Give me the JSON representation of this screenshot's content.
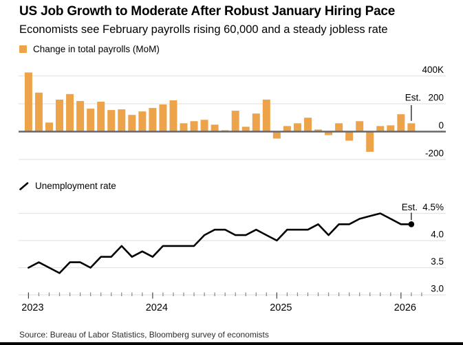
{
  "header": {
    "title": "US Job Growth to Moderate After Robust January Hiring Pace",
    "subtitle": "Economists see February payrolls rising 60,000 and a steady jobless rate"
  },
  "colors": {
    "bar": "#ECA34A",
    "line": "#000000",
    "grid": "#E4E4E4",
    "zero_axis": "#666666",
    "tick_minor": "#888888",
    "tick_major": "#444444",
    "background": "#FFFFFF",
    "footer_bar": "#000000"
  },
  "chart_data": [
    {
      "id": "payrolls",
      "type": "bar",
      "legend": "Change in total payrolls (MoM)",
      "unit": "thousands",
      "categories": [
        "Jan 2023",
        "Feb 2023",
        "Mar 2023",
        "Apr 2023",
        "May 2023",
        "Jun 2023",
        "Jul 2023",
        "Aug 2023",
        "Sep 2023",
        "Oct 2023",
        "Nov 2023",
        "Dec 2023",
        "Jan 2024",
        "Feb 2024",
        "Mar 2024",
        "Apr 2024",
        "May 2024",
        "Jun 2024",
        "Jul 2024",
        "Aug 2024",
        "Sep 2024",
        "Oct 2024",
        "Nov 2024",
        "Dec 2024",
        "Jan 2025",
        "Feb 2025",
        "Mar 2025",
        "Apr 2025",
        "May 2025",
        "Jun 2025",
        "Jul 2025",
        "Aug 2025",
        "Sep 2025",
        "Oct 2025",
        "Nov 2025",
        "Dec 2025",
        "Jan 2026",
        "Feb 2026"
      ],
      "values": [
        425,
        280,
        65,
        230,
        270,
        220,
        165,
        215,
        155,
        160,
        120,
        145,
        170,
        195,
        225,
        60,
        75,
        85,
        50,
        10,
        150,
        35,
        130,
        230,
        -50,
        40,
        60,
        100,
        15,
        -25,
        60,
        -65,
        75,
        -145,
        40,
        45,
        125,
        60
      ],
      "est_label": "Est.",
      "est_applies_to": "Feb 2026",
      "est_value": 60,
      "yticks": [
        {
          "value": 400,
          "label": "400K"
        },
        {
          "value": 200,
          "label": "200"
        },
        {
          "value": 0,
          "label": "0"
        },
        {
          "value": -200,
          "label": "-200"
        }
      ],
      "ylim": [
        -260,
        460
      ],
      "grid": true,
      "legend_position": "top-left"
    },
    {
      "id": "unemployment",
      "type": "line",
      "legend": "Unemployment rate",
      "unit": "percent",
      "categories": [
        "Jan 2023",
        "Feb 2023",
        "Mar 2023",
        "Apr 2023",
        "May 2023",
        "Jun 2023",
        "Jul 2023",
        "Aug 2023",
        "Sep 2023",
        "Oct 2023",
        "Nov 2023",
        "Dec 2023",
        "Jan 2024",
        "Feb 2024",
        "Mar 2024",
        "Apr 2024",
        "May 2024",
        "Jun 2024",
        "Jul 2024",
        "Aug 2024",
        "Sep 2024",
        "Oct 2024",
        "Nov 2024",
        "Dec 2024",
        "Jan 2025",
        "Feb 2025",
        "Mar 2025",
        "Apr 2025",
        "May 2025",
        "Jun 2025",
        "Jul 2025",
        "Aug 2025",
        "Sep 2025",
        "Oct 2025",
        "Nov 2025",
        "Dec 2025",
        "Jan 2026",
        "Feb 2026"
      ],
      "values": [
        3.5,
        3.6,
        3.5,
        3.4,
        3.6,
        3.6,
        3.5,
        3.7,
        3.7,
        3.9,
        3.7,
        3.8,
        3.7,
        3.9,
        3.9,
        3.9,
        3.9,
        4.1,
        4.2,
        4.2,
        4.1,
        4.1,
        4.2,
        4.1,
        4.0,
        4.2,
        4.2,
        4.2,
        4.3,
        4.1,
        4.3,
        4.3,
        4.4,
        4.45,
        4.5,
        4.4,
        4.3,
        4.3
      ],
      "est_label": "Est.",
      "est_applies_to": "Feb 2026",
      "est_value": 4.3,
      "yticks": [
        {
          "value": 4.5,
          "label": "4.5%"
        },
        {
          "value": 4.0,
          "label": "4.0"
        },
        {
          "value": 3.5,
          "label": "3.5"
        },
        {
          "value": 3.0,
          "label": "3.0"
        }
      ],
      "ylim": [
        2.9,
        4.8
      ],
      "grid": true,
      "legend_position": "top-left"
    }
  ],
  "xaxis": {
    "year_labels": [
      "2023",
      "2024",
      "2025",
      "2026"
    ],
    "tick_interval": "month"
  },
  "footer": {
    "source": "Source: Bureau of Labor Statistics, Bloomberg survey of economists"
  }
}
